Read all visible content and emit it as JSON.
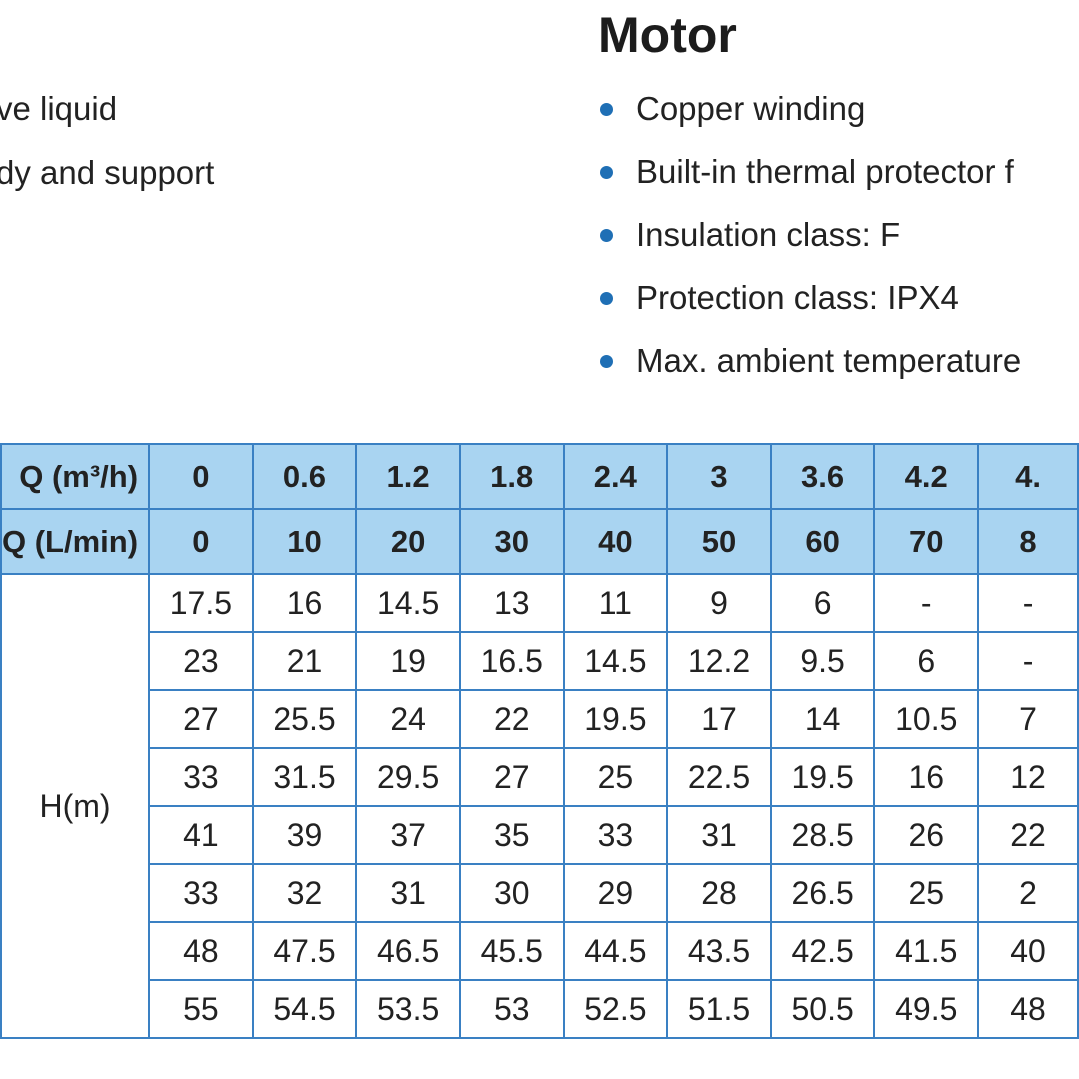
{
  "left_text": [
    "ve liquid",
    "dy and support"
  ],
  "motor": {
    "title": "Motor",
    "bullets": [
      "Copper winding",
      "Built-in thermal protector f",
      "Insulation class: F",
      "Protection class: IPX4",
      "Max. ambient temperature"
    ]
  },
  "table": {
    "header": [
      [
        "Q (m³/h)",
        "0",
        "0.6",
        "1.2",
        "1.8",
        "2.4",
        "3",
        "3.6",
        "4.2",
        "4."
      ],
      [
        "Q (L/min)",
        "0",
        "10",
        "20",
        "30",
        "40",
        "50",
        "60",
        "70",
        "8"
      ]
    ],
    "row_label": "H(m)",
    "rows": [
      [
        "17.5",
        "16",
        "14.5",
        "13",
        "11",
        "9",
        "6",
        "-",
        "-"
      ],
      [
        "23",
        "21",
        "19",
        "16.5",
        "14.5",
        "12.2",
        "9.5",
        "6",
        "-"
      ],
      [
        "27",
        "25.5",
        "24",
        "22",
        "19.5",
        "17",
        "14",
        "10.5",
        "7"
      ],
      [
        "33",
        "31.5",
        "29.5",
        "27",
        "25",
        "22.5",
        "19.5",
        "16",
        "12"
      ],
      [
        "41",
        "39",
        "37",
        "35",
        "33",
        "31",
        "28.5",
        "26",
        "22"
      ],
      [
        "33",
        "32",
        "31",
        "30",
        "29",
        "28",
        "26.5",
        "25",
        "2"
      ],
      [
        "48",
        "47.5",
        "46.5",
        "45.5",
        "44.5",
        "43.5",
        "42.5",
        "41.5",
        "40"
      ],
      [
        "55",
        "54.5",
        "53.5",
        "53",
        "52.5",
        "51.5",
        "50.5",
        "49.5",
        "48"
      ]
    ]
  }
}
